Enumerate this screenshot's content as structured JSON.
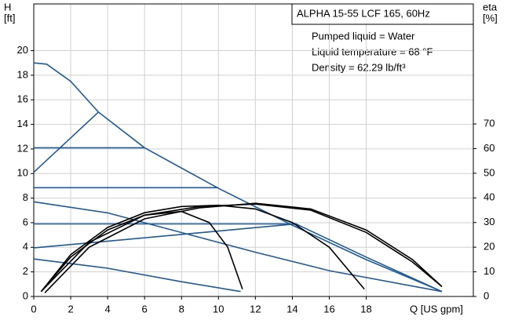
{
  "chart_data": {
    "type": "line",
    "title": "ALPHA 15-55 LCF 165, 60Hz",
    "annotations": [
      "Pumped liquid = Water",
      "Liquid temperature = 68 °F",
      "Density = 62.29 lb/ft³"
    ],
    "y_label": [
      "H",
      "[ft]"
    ],
    "y2_label": [
      "eta",
      "[%]"
    ],
    "x_label": "Q [US gpm]",
    "xlim": [
      0,
      23.8
    ],
    "ylim": [
      0,
      23.8
    ],
    "y2lim": [
      0,
      118.7
    ],
    "xticks": [
      0,
      2,
      4,
      6,
      8,
      10,
      12,
      14,
      16,
      18
    ],
    "yticks": [
      0,
      2,
      4,
      6,
      8,
      10,
      12,
      14,
      16,
      18,
      20
    ],
    "y2ticks": [
      0,
      10,
      20,
      30,
      40,
      50,
      60,
      70
    ],
    "grid": true,
    "series": [
      {
        "color": "#1f5a96",
        "x": [
          0,
          0.7,
          2,
          3.5,
          6,
          10,
          14,
          18,
          22.1
        ],
        "values": [
          19,
          18.9,
          17.5,
          15,
          12.1,
          8.8,
          5.8,
          3.0,
          0.4
        ]
      },
      {
        "color": "#1f5a96",
        "x": [
          0,
          3.5
        ],
        "values": [
          10.1,
          15
        ]
      },
      {
        "color": "#1f5a96",
        "x": [
          0,
          6
        ],
        "values": [
          12.1,
          12.1
        ]
      },
      {
        "color": "#1f5a96",
        "x": [
          0,
          10
        ],
        "values": [
          8.85,
          8.85
        ]
      },
      {
        "color": "#1f5a96",
        "x": [
          0,
          14.2
        ],
        "values": [
          5.9,
          5.9
        ]
      },
      {
        "color": "#1f5a96",
        "x": [
          0,
          14.2,
          18,
          22.1
        ],
        "values": [
          3.95,
          5.9,
          3.2,
          0.4
        ]
      },
      {
        "color": "#1f5a96",
        "x": [
          0,
          4,
          8,
          12,
          16,
          22.1
        ],
        "values": [
          7.7,
          6.8,
          5.2,
          3.6,
          2.1,
          0.4
        ]
      },
      {
        "color": "#1f5a96",
        "x": [
          0,
          4,
          8,
          11.2
        ],
        "values": [
          3.05,
          2.3,
          1.2,
          0.4
        ]
      },
      {
        "color": "#000000",
        "axis": "y2",
        "x": [
          0.4,
          2,
          4,
          6,
          8,
          9.5,
          10.5,
          11.3
        ],
        "values": [
          2,
          16,
          27,
          33,
          34.5,
          30,
          20,
          3
        ]
      },
      {
        "color": "#000000",
        "axis": "y2",
        "x": [
          0.4,
          2,
          4,
          6,
          8,
          10,
          12,
          14,
          16,
          17.9
        ],
        "values": [
          2,
          17,
          28,
          34,
          36.5,
          37,
          35.5,
          30,
          20,
          3
        ]
      },
      {
        "color": "#000000",
        "axis": "y2",
        "x": [
          0.4,
          3,
          6,
          9,
          12,
          15,
          18,
          20.5,
          22.1
        ],
        "values": [
          2,
          22,
          33,
          36.5,
          37.5,
          35,
          26,
          14,
          4
        ]
      },
      {
        "color": "#000000",
        "axis": "y2",
        "x": [
          0.6,
          3,
          6,
          9,
          12,
          15,
          18,
          20.5,
          22.1
        ],
        "values": [
          1.5,
          20,
          31.5,
          36,
          37.8,
          35.5,
          27,
          15,
          4
        ]
      }
    ]
  }
}
